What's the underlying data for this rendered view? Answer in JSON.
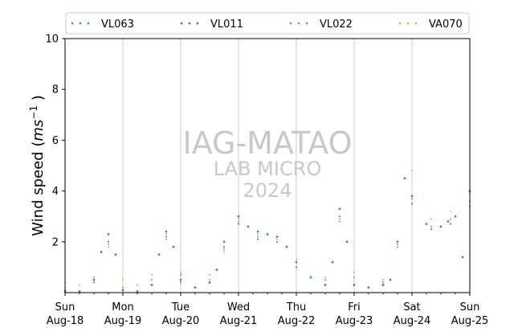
{
  "chart_data": {
    "type": "scatter",
    "title": "",
    "xlabel": "",
    "ylabel": "Wind speed (ms⁻¹ )",
    "ylabel_main": "Wind speed (",
    "ylabel_unit": "ms",
    "ylabel_exp": "−1",
    "ylabel_close": " )",
    "xlim": [
      "2024-08-18 00:00",
      "2024-08-25 00:00"
    ],
    "ylim": [
      0,
      10
    ],
    "yticks": [
      2,
      4,
      6,
      8,
      10
    ],
    "xticks": [
      {
        "date": "2024-08-18",
        "weekday": "Sun",
        "label": "Aug-18"
      },
      {
        "date": "2024-08-19",
        "weekday": "Mon",
        "label": "Aug-19"
      },
      {
        "date": "2024-08-20",
        "weekday": "Tue",
        "label": "Aug-20"
      },
      {
        "date": "2024-08-21",
        "weekday": "Wed",
        "label": "Aug-21"
      },
      {
        "date": "2024-08-22",
        "weekday": "Thu",
        "label": "Aug-22"
      },
      {
        "date": "2024-08-23",
        "weekday": "Fri",
        "label": "Aug-23"
      },
      {
        "date": "2024-08-24",
        "weekday": "Sat",
        "label": "Aug-24"
      },
      {
        "date": "2024-08-25",
        "weekday": "Sun",
        "label": "Aug-25"
      }
    ],
    "grid": "vertical at day boundaries",
    "legend_position": "top",
    "series": [
      {
        "name": "VL063",
        "color": "#2ca25f",
        "x": [
          "2024-08-18 00:00",
          "2024-08-18 06:00",
          "2024-08-18 12:00",
          "2024-08-18 15:00",
          "2024-08-18 18:00",
          "2024-08-18 21:00",
          "2024-08-19 00:00",
          "2024-08-19 06:00",
          "2024-08-19 12:00",
          "2024-08-19 15:00",
          "2024-08-19 18:00",
          "2024-08-19 21:00",
          "2024-08-20 00:00",
          "2024-08-20 06:00",
          "2024-08-20 12:00",
          "2024-08-20 15:00",
          "2024-08-20 18:00",
          "2024-08-21 00:00",
          "2024-08-21 04:00",
          "2024-08-21 08:00",
          "2024-08-21 12:00",
          "2024-08-21 16:00",
          "2024-08-21 20:00",
          "2024-08-22 00:00",
          "2024-08-22 06:00",
          "2024-08-22 12:00",
          "2024-08-22 15:00",
          "2024-08-22 18:00",
          "2024-08-22 21:00",
          "2024-08-23 00:00",
          "2024-08-23 06:00",
          "2024-08-23 12:00",
          "2024-08-23 15:00",
          "2024-08-23 18:00",
          "2024-08-23 21:00",
          "2024-08-24 00:00",
          "2024-08-24 06:00",
          "2024-08-24 12:00",
          "2024-08-24 15:00",
          "2024-08-24 18:00",
          "2024-08-24 21:00",
          "2024-08-25 00:00"
        ],
        "y": [
          0.05,
          0.05,
          0.5,
          1.6,
          2.3,
          1.5,
          0.1,
          0.05,
          0.3,
          1.5,
          2.4,
          1.8,
          0.5,
          0.2,
          0.4,
          0.9,
          2.0,
          3.0,
          2.6,
          2.4,
          2.3,
          2.2,
          1.8,
          1.2,
          0.6,
          0.3,
          1.2,
          3.3,
          2.0,
          0.3,
          0.2,
          0.3,
          0.5,
          2.0,
          4.5,
          3.8,
          2.7,
          2.6,
          2.8,
          3.0,
          1.4,
          4.0
        ]
      },
      {
        "name": "VL011",
        "color": "#3a6fb0",
        "x": [
          "2024-08-18 00:00",
          "2024-08-18 12:00",
          "2024-08-18 18:00",
          "2024-08-19 00:00",
          "2024-08-19 12:00",
          "2024-08-19 18:00",
          "2024-08-20 00:00",
          "2024-08-20 12:00",
          "2024-08-20 18:00",
          "2024-08-21 00:00",
          "2024-08-21 08:00",
          "2024-08-21 16:00",
          "2024-08-22 00:00",
          "2024-08-22 12:00",
          "2024-08-22 18:00",
          "2024-08-23 00:00",
          "2024-08-23 12:00",
          "2024-08-23 18:00",
          "2024-08-24 00:00",
          "2024-08-24 08:00",
          "2024-08-24 16:00",
          "2024-08-25 00:00"
        ],
        "y": [
          0.05,
          0.4,
          2.0,
          0.1,
          0.3,
          2.2,
          0.4,
          0.4,
          1.8,
          2.7,
          2.1,
          2.0,
          1.0,
          0.3,
          3.0,
          0.3,
          0.3,
          1.9,
          3.5,
          2.5,
          2.7,
          3.6
        ]
      },
      {
        "name": "VL022",
        "color": "#c46aa6",
        "x": [
          "2024-08-18 00:00",
          "2024-08-18 12:00",
          "2024-08-18 18:00",
          "2024-08-19 00:00",
          "2024-08-19 12:00",
          "2024-08-19 18:00",
          "2024-08-20 00:00",
          "2024-08-20 12:00",
          "2024-08-20 18:00",
          "2024-08-21 00:00",
          "2024-08-21 08:00",
          "2024-08-21 16:00",
          "2024-08-22 00:00",
          "2024-08-22 12:00",
          "2024-08-22 18:00",
          "2024-08-23 00:00",
          "2024-08-23 12:00",
          "2024-08-23 18:00",
          "2024-08-24 00:00",
          "2024-08-24 08:00",
          "2024-08-24 16:00",
          "2024-08-25 00:00"
        ],
        "y": [
          0.1,
          0.6,
          1.9,
          0.2,
          0.5,
          2.1,
          0.7,
          0.5,
          1.7,
          2.8,
          2.2,
          2.0,
          1.2,
          0.5,
          2.8,
          0.6,
          0.4,
          1.8,
          3.7,
          2.6,
          2.9,
          3.4
        ]
      },
      {
        "name": "VA070",
        "color": "#f0a830",
        "x": [
          "2024-08-18 00:00",
          "2024-08-18 06:00",
          "2024-08-18 12:00",
          "2024-08-18 18:00",
          "2024-08-19 00:00",
          "2024-08-19 06:00",
          "2024-08-19 12:00",
          "2024-08-19 18:00",
          "2024-08-20 00:00",
          "2024-08-20 12:00",
          "2024-08-20 18:00",
          "2024-08-21 00:00",
          "2024-08-21 08:00",
          "2024-08-21 16:00",
          "2024-08-22 00:00",
          "2024-08-22 12:00",
          "2024-08-22 18:00",
          "2024-08-23 00:00",
          "2024-08-23 12:00",
          "2024-08-23 18:00",
          "2024-08-24 00:00",
          "2024-08-24 08:00",
          "2024-08-24 16:00",
          "2024-08-25 00:00"
        ],
        "y": [
          0.4,
          0.3,
          0.6,
          1.8,
          0.5,
          0.3,
          0.7,
          2.3,
          0.8,
          0.7,
          1.6,
          2.9,
          2.3,
          2.1,
          1.3,
          0.6,
          2.9,
          0.8,
          0.5,
          1.9,
          4.8,
          2.9,
          3.2,
          3.9
        ]
      }
    ]
  },
  "watermark": {
    "line1": "IAG-MATAO",
    "line2": "LAB MICRO",
    "line3": "2024"
  }
}
